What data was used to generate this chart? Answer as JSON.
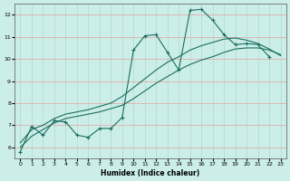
{
  "xlabel": "Humidex (Indice chaleur)",
  "bg_color": "#cceee8",
  "grid_h_color": "#e8a0a0",
  "grid_v_color": "#b0d8d0",
  "line_color": "#1a6e60",
  "xlim": [
    -0.5,
    23.5
  ],
  "ylim": [
    5.5,
    12.5
  ],
  "xticks": [
    0,
    1,
    2,
    3,
    4,
    5,
    6,
    7,
    8,
    9,
    10,
    11,
    12,
    13,
    14,
    15,
    16,
    17,
    18,
    19,
    20,
    21,
    22,
    23
  ],
  "yticks": [
    6,
    7,
    8,
    9,
    10,
    11,
    12
  ],
  "line1_x": [
    0,
    1,
    2,
    3,
    4,
    5,
    6,
    7,
    8,
    9,
    10,
    11,
    12,
    13,
    14,
    15,
    16,
    17,
    18,
    19,
    20,
    21,
    22
  ],
  "line1_y": [
    5.8,
    6.95,
    6.55,
    7.2,
    7.15,
    6.55,
    6.45,
    6.85,
    6.85,
    7.35,
    10.4,
    11.05,
    11.1,
    10.3,
    9.5,
    12.2,
    12.25,
    11.75,
    11.1,
    10.65,
    10.7,
    10.65,
    10.1
  ],
  "line2_x": [
    0,
    1,
    2,
    3,
    4,
    5,
    6,
    7,
    8,
    9,
    10,
    11,
    12,
    13,
    14,
    15,
    16,
    17,
    18,
    19,
    20,
    21,
    22,
    23
  ],
  "line2_y": [
    6.2,
    6.8,
    7.0,
    7.3,
    7.5,
    7.6,
    7.7,
    7.85,
    8.0,
    8.3,
    8.7,
    9.1,
    9.5,
    9.85,
    10.1,
    10.4,
    10.6,
    10.75,
    10.9,
    10.95,
    10.85,
    10.7,
    10.45,
    10.15
  ],
  "line3_x": [
    0,
    1,
    2,
    3,
    4,
    5,
    6,
    7,
    8,
    9,
    10,
    11,
    12,
    13,
    14,
    15,
    16,
    17,
    18,
    19,
    20,
    21,
    22,
    23
  ],
  "line3_y": [
    6.0,
    6.5,
    6.8,
    7.1,
    7.3,
    7.4,
    7.5,
    7.6,
    7.75,
    7.9,
    8.2,
    8.55,
    8.9,
    9.2,
    9.5,
    9.75,
    9.95,
    10.1,
    10.3,
    10.45,
    10.5,
    10.5,
    10.4,
    10.2
  ]
}
